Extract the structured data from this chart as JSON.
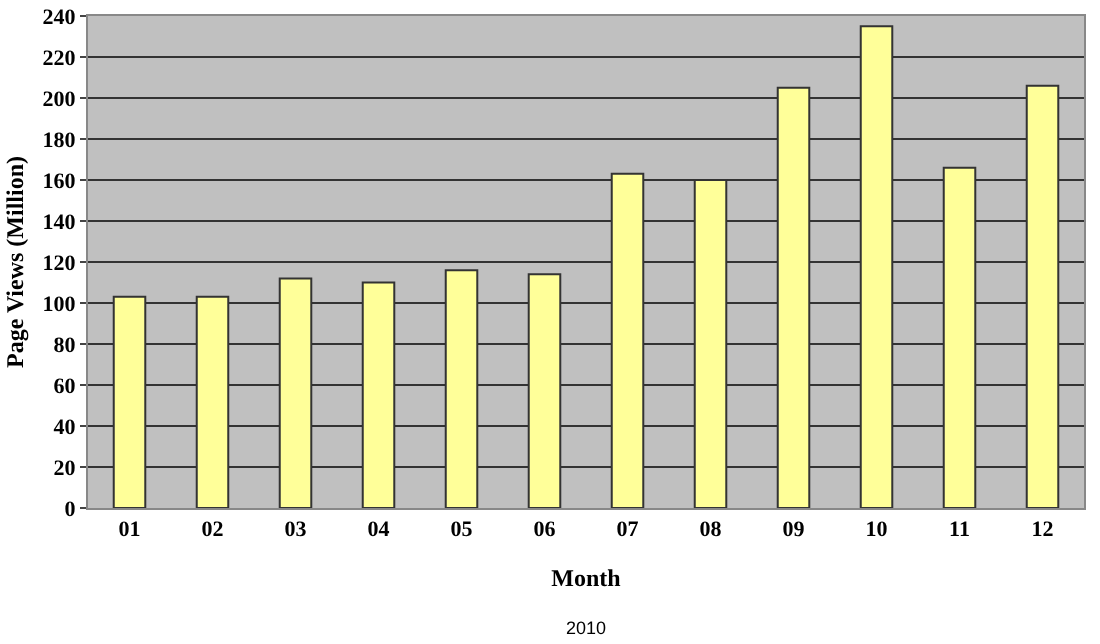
{
  "chart_data": {
    "type": "bar",
    "categories": [
      "01",
      "02",
      "03",
      "04",
      "05",
      "06",
      "07",
      "08",
      "09",
      "10",
      "11",
      "12"
    ],
    "values": [
      103,
      103,
      112,
      110,
      116,
      114,
      163,
      160,
      205,
      235,
      166,
      206
    ],
    "color": "#ffff99",
    "xlabel": "Month",
    "ylabel": "Page Views (Million)",
    "annotations": [
      "2010"
    ],
    "ylim": [
      0,
      240
    ],
    "yticks": [
      0,
      20,
      40,
      60,
      80,
      100,
      120,
      140,
      160,
      180,
      200,
      220,
      240
    ],
    "grid": "y",
    "legend": false
  }
}
